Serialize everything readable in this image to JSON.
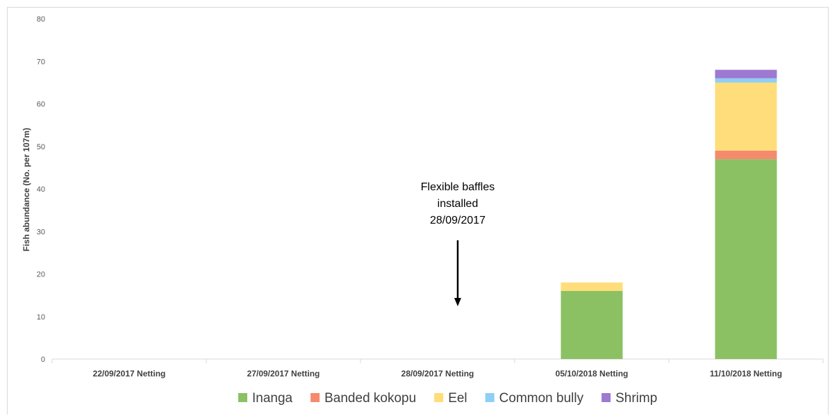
{
  "chart_data": {
    "type": "bar",
    "stacked": true,
    "title": "",
    "xlabel": "",
    "ylabel": "Fish abundance (No. per 107m)",
    "ylim": [
      0,
      80
    ],
    "yticks": [
      0,
      10,
      20,
      30,
      40,
      50,
      60,
      70,
      80
    ],
    "grid": false,
    "legend_position": "bottom",
    "categories": [
      "22/09/2017 Netting",
      "27/09/2017 Netting",
      "28/09/2017 Netting",
      "05/10/2018 Netting",
      "11/10/2018 Netting"
    ],
    "series": [
      {
        "name": "Inanga",
        "color": "#8bc163",
        "values": [
          0,
          0,
          0,
          16,
          47
        ]
      },
      {
        "name": "Banded kokopu",
        "color": "#f58a6e",
        "values": [
          0,
          0,
          0,
          0,
          2
        ]
      },
      {
        "name": "Eel",
        "color": "#ffdd7a",
        "values": [
          0,
          0,
          0,
          2,
          16
        ]
      },
      {
        "name": "Common bully",
        "color": "#8ecff5",
        "values": [
          0,
          0,
          0,
          0,
          1
        ]
      },
      {
        "name": "Shrimp",
        "color": "#9d79d1",
        "values": [
          0,
          0,
          0,
          0,
          2
        ]
      }
    ],
    "annotations": [
      {
        "lines": [
          "Flexible baffles",
          "installed",
          "28/09/2017"
        ],
        "arrow": "down",
        "category_index": 2
      }
    ]
  }
}
